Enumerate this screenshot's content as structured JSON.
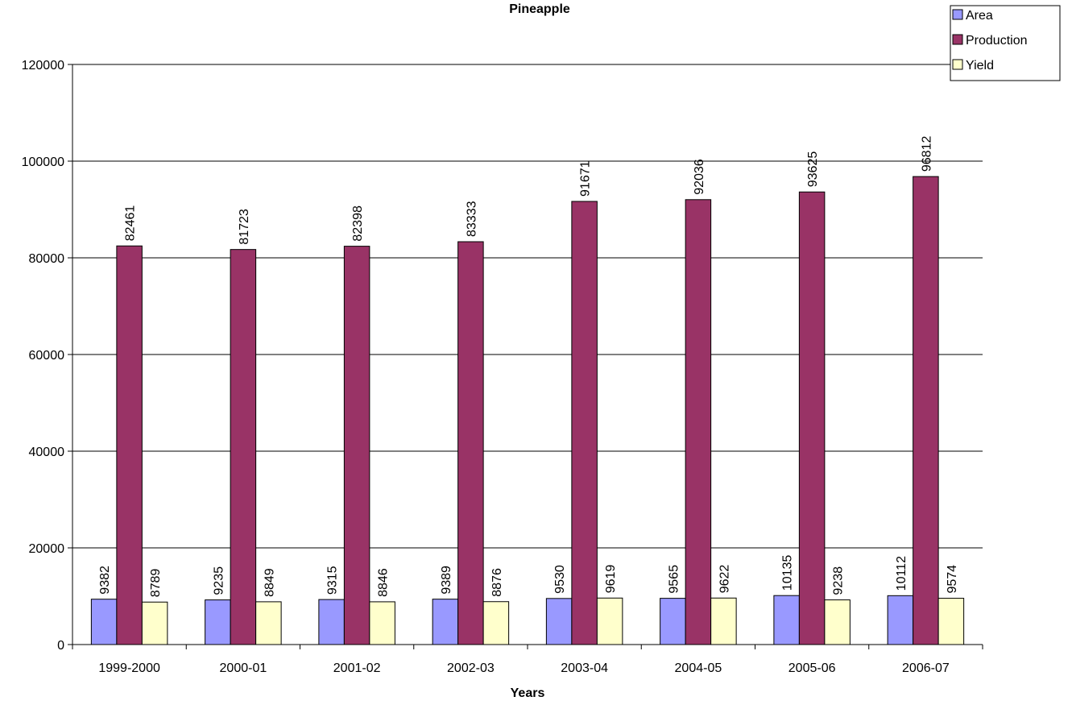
{
  "chart_data": {
    "type": "bar",
    "title": "Pineapple",
    "xlabel": "Years",
    "ylabel": "",
    "ylim": [
      0,
      120000
    ],
    "yticks": [
      0,
      20000,
      40000,
      60000,
      80000,
      100000,
      120000
    ],
    "grid": true,
    "legend_position": "top-right",
    "categories": [
      "1999-2000",
      "2000-01",
      "2001-02",
      "2002-03",
      "2003-04",
      "2004-05",
      "2005-06",
      "2006-07"
    ],
    "series": [
      {
        "name": "Area",
        "color": "#9999FF",
        "values": [
          9382,
          9235,
          9315,
          9389,
          9530,
          9565,
          10135,
          10112
        ]
      },
      {
        "name": "Production",
        "color": "#993366",
        "values": [
          82461,
          81723,
          82398,
          83333,
          91671,
          92036,
          93625,
          96812
        ]
      },
      {
        "name": "Yield",
        "color": "#FFFFCC",
        "values": [
          8789,
          8849,
          8846,
          8876,
          9619,
          9622,
          9238,
          9574
        ]
      }
    ]
  }
}
